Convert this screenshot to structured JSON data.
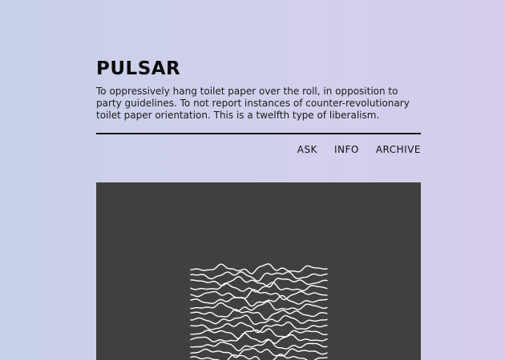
{
  "blog": {
    "title": "PULSAR",
    "description": "To oppressively hang toilet paper over the roll, in opposition to party guidelines. To not report instances of counter-revolutionary toilet paper orientation. This is a twelfth type of liberalism."
  },
  "nav": {
    "items": [
      {
        "label": "ASK"
      },
      {
        "label": "INFO"
      },
      {
        "label": "ARCHIVE"
      }
    ]
  },
  "post": {
    "image_icon": "pulsar-waveform-illustration",
    "colors": {
      "image_background": "#404040",
      "waveform_stroke": "#ffffff"
    }
  }
}
